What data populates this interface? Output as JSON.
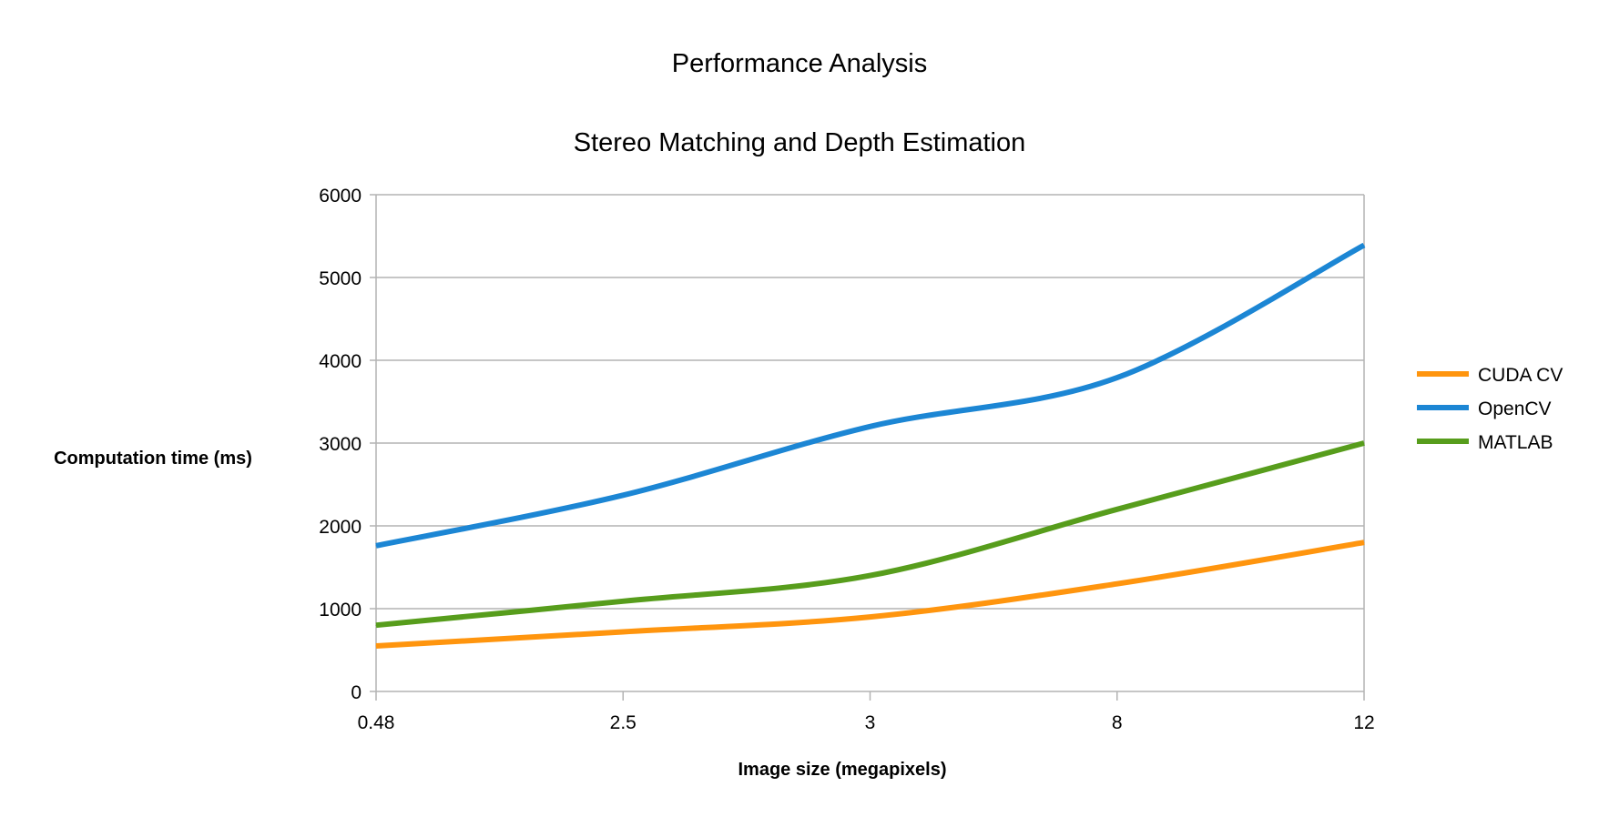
{
  "chart_data": {
    "type": "line",
    "title": "Performance Analysis",
    "subtitle": "Stereo Matching and Depth Estimation",
    "xlabel": "Image size (megapixels)",
    "ylabel": "Computation time (ms)",
    "categories": [
      "0.48",
      "2.5",
      "3",
      "8",
      "12"
    ],
    "ylim": [
      0,
      6000
    ],
    "yticks": [
      "0",
      "1000",
      "2000",
      "3000",
      "4000",
      "5000",
      "6000"
    ],
    "grid": true,
    "legend_position": "right",
    "smooth": true,
    "series": [
      {
        "name": "CUDA CV",
        "color": "#ff950e",
        "values": [
          550,
          720,
          900,
          1300,
          1800
        ]
      },
      {
        "name": "OpenCV",
        "color": "#1c86d4",
        "values": [
          1760,
          2370,
          3200,
          3790,
          5390
        ]
      },
      {
        "name": "MATLAB",
        "color": "#579d1c",
        "values": [
          800,
          1090,
          1400,
          2200,
          3000
        ]
      }
    ]
  }
}
